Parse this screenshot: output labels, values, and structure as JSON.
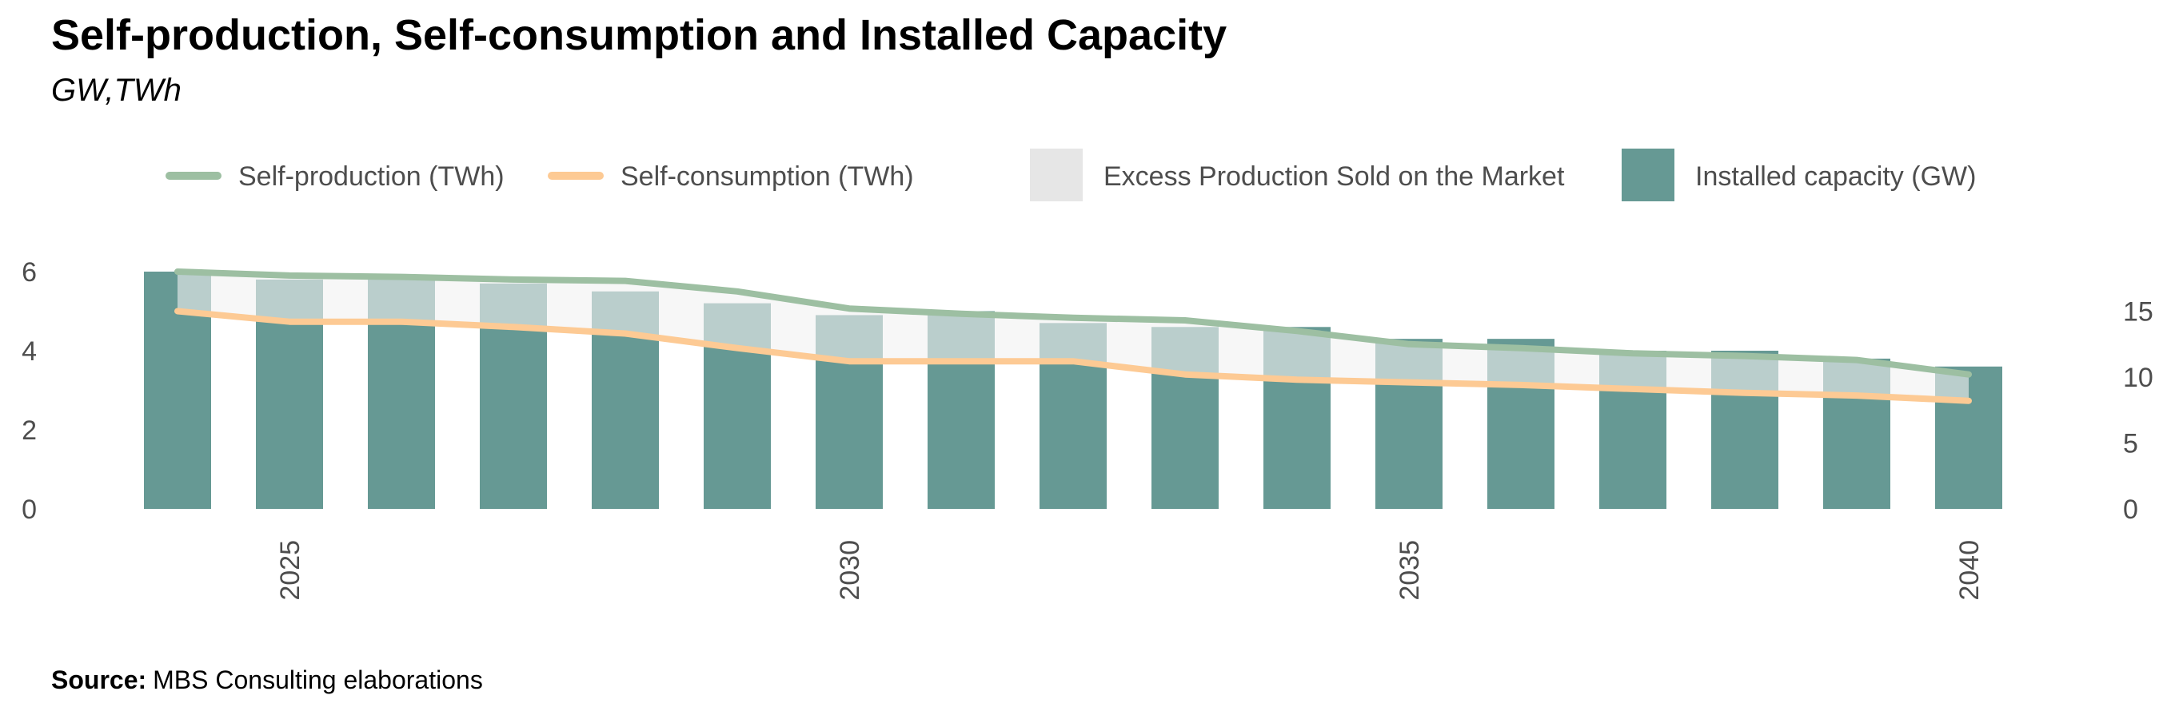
{
  "title": "Self-production, Self-consumption and Installed Capacity",
  "subtitle": "GW,TWh",
  "source": {
    "label": "Source:",
    "text": "MBS Consulting elaborations"
  },
  "legend": {
    "self_production": "Self-production (TWh)",
    "self_consumption": "Self-consumption (TWh)",
    "excess": "Excess Production Sold on the Market",
    "installed": "Installed capacity (GW)"
  },
  "colors": {
    "installed_bar": "#669994",
    "self_production_line": "#9dbfa2",
    "self_consumption_line": "#fdca94",
    "excess_fill": "#f2f2f2",
    "excess_legend": "#e6e6e6",
    "text": "#4d4d4d"
  },
  "chart_data": {
    "type": "bar",
    "x": [
      2024,
      2025,
      2026,
      2027,
      2028,
      2029,
      2030,
      2031,
      2032,
      2033,
      2034,
      2035,
      2036,
      2037,
      2038,
      2039,
      2040
    ],
    "x_ticks": [
      "2025",
      "2030",
      "2035",
      "2040"
    ],
    "x_tick_values": [
      2025,
      2030,
      2035,
      2040
    ],
    "y_left": {
      "label": "",
      "lim": [
        0,
        6
      ],
      "ticks": [
        "0",
        "2",
        "4",
        "6"
      ],
      "tick_values": [
        0,
        2,
        4,
        6
      ]
    },
    "y_right": {
      "label": "",
      "lim": [
        0,
        18
      ],
      "ticks": [
        "0",
        "5",
        "10",
        "15"
      ],
      "tick_values": [
        0,
        5,
        10,
        15
      ]
    },
    "series": [
      {
        "name": "Installed capacity (GW)",
        "type": "bar",
        "axis": "left",
        "values": [
          6.0,
          5.8,
          5.8,
          5.7,
          5.5,
          5.2,
          4.9,
          5.0,
          4.7,
          4.6,
          4.6,
          4.3,
          4.3,
          4.0,
          4.0,
          3.8,
          3.6
        ]
      },
      {
        "name": "Self-production (TWh)",
        "type": "line",
        "axis": "right",
        "values": [
          18.0,
          17.7,
          17.6,
          17.4,
          17.3,
          16.5,
          15.2,
          14.8,
          14.5,
          14.3,
          13.5,
          12.5,
          12.2,
          11.8,
          11.6,
          11.3,
          10.2
        ]
      },
      {
        "name": "Self-consumption (TWh)",
        "type": "line",
        "axis": "right",
        "values": [
          15.0,
          14.2,
          14.2,
          13.8,
          13.3,
          12.2,
          11.2,
          11.2,
          11.2,
          10.2,
          9.8,
          9.6,
          9.4,
          9.1,
          8.8,
          8.6,
          8.2
        ]
      },
      {
        "name": "Excess Production Sold on the Market",
        "type": "area",
        "axis": "right",
        "between": [
          "Self-consumption (TWh)",
          "Self-production (TWh)"
        ]
      }
    ],
    "grid": false,
    "legend_position": "top"
  }
}
